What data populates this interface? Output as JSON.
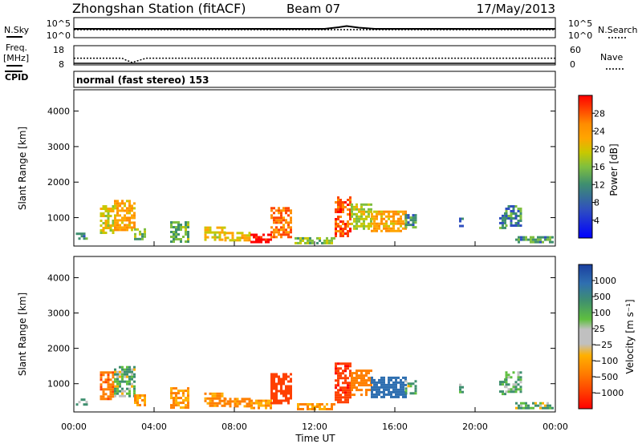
{
  "header": {
    "station": "Zhongshan Station (fitACF)",
    "beam": "Beam 07",
    "date": "17/May/2013"
  },
  "top_panel": {
    "left_label": "N.Sky",
    "left_ticks": [
      "10^5",
      "10^0"
    ],
    "right_ticks": [
      "10^5",
      "10^0"
    ],
    "right_label": "N.Search"
  },
  "freq_panel": {
    "left_label_line1": "Freq.",
    "left_label_line2": "[MHz]",
    "left_ticks": [
      "18",
      "8"
    ],
    "right_ticks": [
      "60",
      "0"
    ],
    "right_label": "Nave"
  },
  "cpid": {
    "label": "CPID",
    "mode_text": "normal (fast stereo) 153"
  },
  "axes": {
    "ylabel": "Slant Range [km]",
    "yticks": [
      "4000",
      "3000",
      "2000",
      "1000"
    ],
    "xlabel": "Time UT",
    "xticks": [
      "00:00",
      "04:00",
      "08:00",
      "12:00",
      "16:00",
      "20:00",
      "00:00"
    ]
  },
  "power_colorbar": {
    "label": "Power [dB]",
    "ticks": [
      "28",
      "24",
      "20",
      "16",
      "12",
      "8",
      "4"
    ],
    "colors": [
      "#ff0000",
      "#ff4500",
      "#ff8c00",
      "#ffa500",
      "#c8c800",
      "#7fbf3f",
      "#3f8f6f",
      "#2f4fbf",
      "#0000ff"
    ]
  },
  "velocity_colorbar": {
    "label": "Velocity [m s⁻¹]",
    "ticks": [
      "1000",
      "500",
      "100",
      "25",
      "−25",
      "−100",
      "−500",
      "−1000"
    ],
    "colors": [
      "#1a3fa0",
      "#2f6fb0",
      "#3f8f6f",
      "#5fbf3f",
      "#c0c0c0",
      "#ffb000",
      "#ff7f00",
      "#ff4000",
      "#ff0000"
    ]
  },
  "chart_data": {
    "type": "heatmap",
    "x_unit": "hours UT",
    "y_unit": "Slant Range [km]",
    "xlim": [
      0,
      24
    ],
    "ylim": [
      200,
      4600
    ],
    "series": [
      {
        "name": "Power [dB]",
        "patches": [
          {
            "t0": 0.1,
            "t1": 0.6,
            "r0": 380,
            "r1": 580,
            "v": 8
          },
          {
            "t0": 1.3,
            "t1": 2.0,
            "r0": 600,
            "r1": 1350,
            "v": 16
          },
          {
            "t0": 2.0,
            "t1": 3.0,
            "r0": 650,
            "r1": 1500,
            "v": 20
          },
          {
            "t0": 3.0,
            "t1": 3.6,
            "r0": 380,
            "r1": 700,
            "v": 12
          },
          {
            "t0": 4.8,
            "t1": 5.7,
            "r0": 350,
            "r1": 900,
            "v": 10
          },
          {
            "t0": 6.5,
            "t1": 7.5,
            "r0": 350,
            "r1": 750,
            "v": 16
          },
          {
            "t0": 7.5,
            "t1": 8.8,
            "r0": 350,
            "r1": 600,
            "v": 18
          },
          {
            "t0": 8.8,
            "t1": 9.8,
            "r0": 280,
            "r1": 550,
            "v": 30
          },
          {
            "t0": 9.8,
            "t1": 10.8,
            "r0": 450,
            "r1": 1300,
            "v": 24
          },
          {
            "t0": 11.0,
            "t1": 13.0,
            "r0": 280,
            "r1": 450,
            "v": 12
          },
          {
            "t0": 13.0,
            "t1": 13.8,
            "r0": 500,
            "r1": 1600,
            "v": 26
          },
          {
            "t0": 13.8,
            "t1": 14.8,
            "r0": 700,
            "r1": 1400,
            "v": 14
          },
          {
            "t0": 14.8,
            "t1": 16.5,
            "r0": 600,
            "r1": 1200,
            "v": 20
          },
          {
            "t0": 16.5,
            "t1": 17.0,
            "r0": 700,
            "r1": 1100,
            "v": 8
          },
          {
            "t0": 19.2,
            "t1": 19.4,
            "r0": 750,
            "r1": 1000,
            "v": 6
          },
          {
            "t0": 21.2,
            "t1": 21.5,
            "r0": 700,
            "r1": 1150,
            "v": 6
          },
          {
            "t0": 21.5,
            "t1": 22.3,
            "r0": 800,
            "r1": 1350,
            "v": 8
          },
          {
            "t0": 22.0,
            "t1": 23.9,
            "r0": 300,
            "r1": 480,
            "v": 8
          }
        ]
      },
      {
        "name": "Velocity [m s⁻¹]",
        "patches": [
          {
            "t0": 0.1,
            "t1": 0.6,
            "r0": 380,
            "r1": 580,
            "v": 100
          },
          {
            "t0": 1.3,
            "t1": 2.0,
            "r0": 600,
            "r1": 1350,
            "v": -400
          },
          {
            "t0": 2.0,
            "t1": 3.0,
            "r0": 650,
            "r1": 1500,
            "v": 60
          },
          {
            "t0": 3.0,
            "t1": 3.6,
            "r0": 380,
            "r1": 700,
            "v": -150
          },
          {
            "t0": 4.8,
            "t1": 5.7,
            "r0": 350,
            "r1": 900,
            "v": -150
          },
          {
            "t0": 6.5,
            "t1": 7.5,
            "r0": 350,
            "r1": 750,
            "v": -150
          },
          {
            "t0": 7.5,
            "t1": 8.8,
            "r0": 350,
            "r1": 600,
            "v": -200
          },
          {
            "t0": 8.8,
            "t1": 9.8,
            "r0": 280,
            "r1": 550,
            "v": -150
          },
          {
            "t0": 9.8,
            "t1": 10.8,
            "r0": 450,
            "r1": 1300,
            "v": -600
          },
          {
            "t0": 11.0,
            "t1": 13.0,
            "r0": 280,
            "r1": 450,
            "v": -150
          },
          {
            "t0": 13.0,
            "t1": 13.8,
            "r0": 500,
            "r1": 1600,
            "v": -700
          },
          {
            "t0": 13.8,
            "t1": 14.8,
            "r0": 700,
            "r1": 1400,
            "v": -300
          },
          {
            "t0": 14.8,
            "t1": 16.5,
            "r0": 600,
            "r1": 1200,
            "v": 600
          },
          {
            "t0": 16.5,
            "t1": 17.0,
            "r0": 700,
            "r1": 1100,
            "v": 60
          },
          {
            "t0": 19.2,
            "t1": 19.4,
            "r0": 750,
            "r1": 1000,
            "v": 100
          },
          {
            "t0": 21.2,
            "t1": 21.5,
            "r0": 700,
            "r1": 1150,
            "v": 100
          },
          {
            "t0": 21.5,
            "t1": 22.3,
            "r0": 800,
            "r1": 1350,
            "v": 100
          },
          {
            "t0": 22.0,
            "t1": 23.9,
            "r0": 300,
            "r1": 480,
            "v": 50
          }
        ]
      }
    ],
    "noise_sky_log": [
      {
        "t": 0,
        "v": 2.2
      },
      {
        "t": 12.5,
        "v": 2.2
      },
      {
        "t": 13.2,
        "v": 2.6
      },
      {
        "t": 13.6,
        "v": 2.9
      },
      {
        "t": 14.2,
        "v": 2.5
      },
      {
        "t": 15,
        "v": 2.2
      },
      {
        "t": 24,
        "v": 2.2
      }
    ],
    "noise_search_log": 2.0,
    "frequency_mhz": [
      {
        "t": 0,
        "v": 11.5
      },
      {
        "t": 2.4,
        "v": 11.5
      },
      {
        "t": 2.6,
        "v": 10.5
      },
      {
        "t": 2.9,
        "v": 9.3
      },
      {
        "t": 3.2,
        "v": 10.2
      },
      {
        "t": 3.6,
        "v": 11.5
      },
      {
        "t": 24,
        "v": 11.5
      }
    ],
    "nave": 20
  }
}
